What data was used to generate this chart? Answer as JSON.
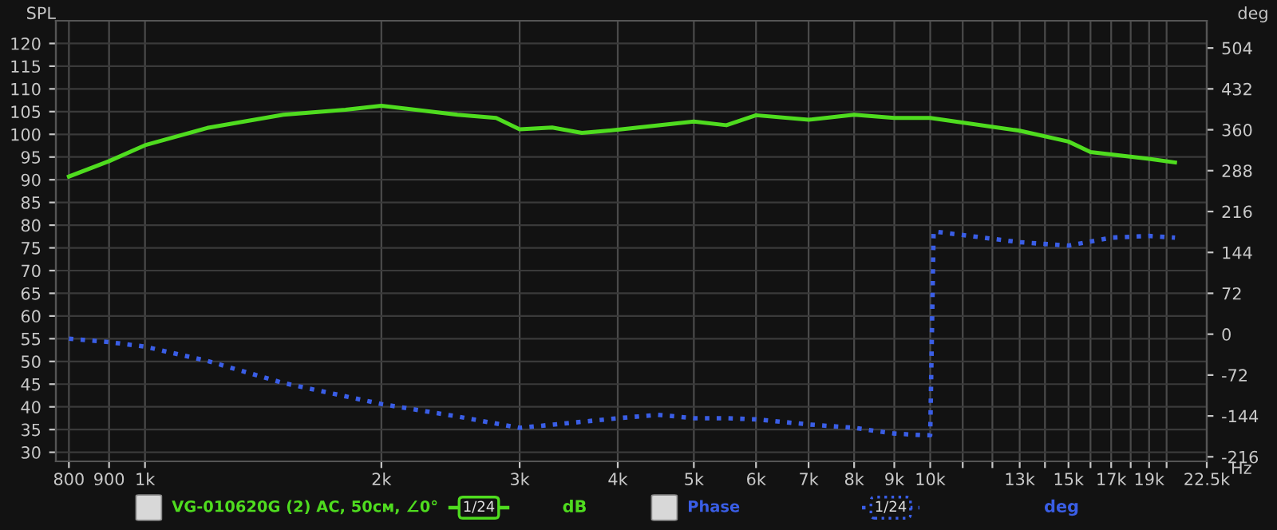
{
  "chart_data": {
    "type": "line",
    "log": "x",
    "grid": true,
    "legend": "bottom",
    "marker": "none",
    "ylabel": "SPL",
    "y2label": "deg",
    "xlim": [
      770,
      22500
    ],
    "ylim": [
      28,
      125
    ],
    "y2lim": [
      -224,
      552
    ],
    "xticks": [
      {
        "value": 800,
        "label": "800"
      },
      {
        "value": 900,
        "label": "900"
      },
      {
        "value": 1000,
        "label": "1k"
      },
      {
        "value": 2000,
        "label": "2k"
      },
      {
        "value": 3000,
        "label": "3k"
      },
      {
        "value": 4000,
        "label": "4k"
      },
      {
        "value": 5000,
        "label": "5k"
      },
      {
        "value": 6000,
        "label": "6k"
      },
      {
        "value": 7000,
        "label": "7k"
      },
      {
        "value": 8000,
        "label": "8k"
      },
      {
        "value": 9000,
        "label": "9k"
      },
      {
        "value": 10000,
        "label": "10k"
      },
      {
        "value": 11000,
        "label": null
      },
      {
        "value": 12000,
        "label": null
      },
      {
        "value": 13000,
        "label": "13k"
      },
      {
        "value": 14000,
        "label": null
      },
      {
        "value": 15000,
        "label": "15k"
      },
      {
        "value": 16000,
        "label": null
      },
      {
        "value": 17000,
        "label": "17k"
      },
      {
        "value": 18000,
        "label": null
      },
      {
        "value": 19000,
        "label": "19k"
      },
      {
        "value": 20000,
        "label": null
      },
      {
        "value": 22500,
        "label": "22.5k"
      }
    ],
    "xlabel": "Hz",
    "yticks": [
      30,
      35,
      40,
      45,
      50,
      55,
      60,
      65,
      70,
      75,
      80,
      85,
      90,
      95,
      100,
      105,
      110,
      115,
      120
    ],
    "y2ticks": [
      -216,
      -144,
      -72,
      0,
      72,
      144,
      216,
      288,
      360,
      432,
      504
    ],
    "annotations": [
      "1/24",
      "dB",
      "1/24",
      "deg"
    ],
    "series": [
      {
        "name": "VG-010620G (2) AC, 50см, ∠0°",
        "color": "#4fdc1f",
        "line_style": "solid",
        "x": [
          800,
          900,
          1000,
          1200,
          1500,
          1800,
          2000,
          2500,
          2800,
          3000,
          3300,
          3600,
          4000,
          5000,
          5500,
          6000,
          7000,
          8000,
          9000,
          10000,
          13000,
          15000,
          16000,
          19000,
          20500
        ],
        "values": [
          90.7,
          94.1,
          97.6,
          101.4,
          104.3,
          105.4,
          106.3,
          104.3,
          103.6,
          101.1,
          101.5,
          100.3,
          101,
          102.8,
          102,
          104.2,
          103.2,
          104.3,
          103.6,
          103.6,
          100.8,
          98.4,
          96.1,
          94.6,
          93.8
        ]
      },
      {
        "name": "Phase",
        "color": "#3a5ee6",
        "axis": "y2",
        "line_style": "dotted",
        "x": [
          800,
          900,
          1000,
          1200,
          1500,
          2000,
          2500,
          3000,
          3500,
          4000,
          4500,
          5000,
          5500,
          6000,
          7000,
          8000,
          9000,
          9800,
          10000,
          10100,
          13000,
          15000,
          17000,
          19000,
          20500
        ],
        "values": [
          -8,
          -14,
          -22,
          -47,
          -86,
          -123,
          -145,
          -165,
          -156,
          -148,
          -142,
          -148,
          -148,
          -150,
          -159,
          -165,
          -175,
          -178,
          -178,
          181,
          162,
          156,
          170,
          173,
          170
        ]
      }
    ]
  }
}
